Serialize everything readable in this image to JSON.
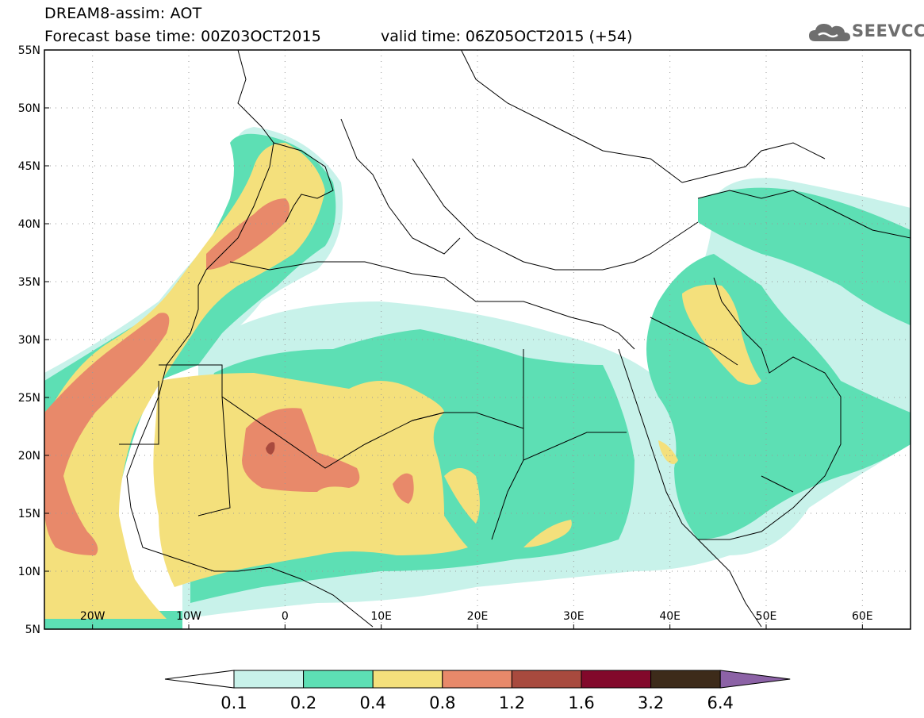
{
  "title": {
    "line1": "DREAM8-assim: AOT",
    "line2": "Forecast base time: 00Z03OCT2015",
    "valid": "valid time: 06Z05OCT2015 (+54)"
  },
  "logo": {
    "text": "SEEVCCC",
    "icon": "cloud-icon"
  },
  "map": {
    "lat_ticks": [
      "55N",
      "50N",
      "45N",
      "40N",
      "35N",
      "30N",
      "25N",
      "20N",
      "15N",
      "10N",
      "5N"
    ],
    "lon_ticks": [
      "20W",
      "10W",
      "0",
      "10E",
      "20E",
      "30E",
      "40E",
      "50E",
      "60E"
    ],
    "extent": {
      "lon_min": -25,
      "lon_max": 65,
      "lat_min": 5,
      "lat_max": 55
    }
  },
  "colorbar": {
    "labels": [
      "0.1",
      "0.2",
      "0.4",
      "0.8",
      "1.2",
      "1.6",
      "3.2",
      "6.4"
    ],
    "colors": [
      "#c8f2ea",
      "#5ddfb4",
      "#f4e07c",
      "#e8896a",
      "#a84a3e",
      "#82092b",
      "#3d2b1a"
    ],
    "over_color": "#8c62a6",
    "under_color": "#ffffff"
  }
}
